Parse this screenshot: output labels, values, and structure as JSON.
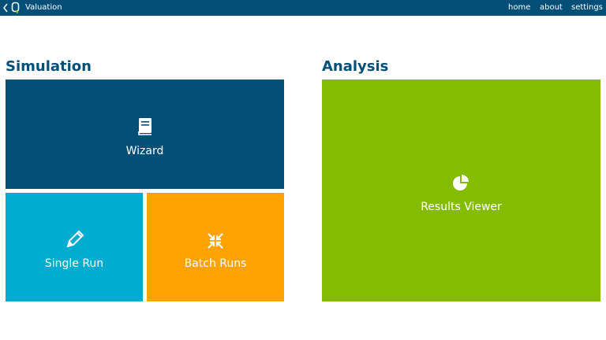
{
  "header": {
    "app_title": "Valuation",
    "nav": [
      {
        "label": "home"
      },
      {
        "label": "about"
      },
      {
        "label": "settings"
      }
    ]
  },
  "simulation": {
    "title": "Simulation",
    "tiles": {
      "wizard": {
        "label": "Wizard",
        "icon": "book-icon",
        "color": "#034f78"
      },
      "single_run": {
        "label": "Single Run",
        "icon": "pencil-icon",
        "color": "#01acd1"
      },
      "batch_runs": {
        "label": "Batch Runs",
        "icon": "compress-icon",
        "color": "#ffa302"
      }
    }
  },
  "analysis": {
    "title": "Analysis",
    "tiles": {
      "results_viewer": {
        "label": "Results Viewer",
        "icon": "pie-chart-icon",
        "color": "#84bd00"
      }
    }
  },
  "colors": {
    "header_bg": "#034f78",
    "section_title": "#034f78"
  }
}
